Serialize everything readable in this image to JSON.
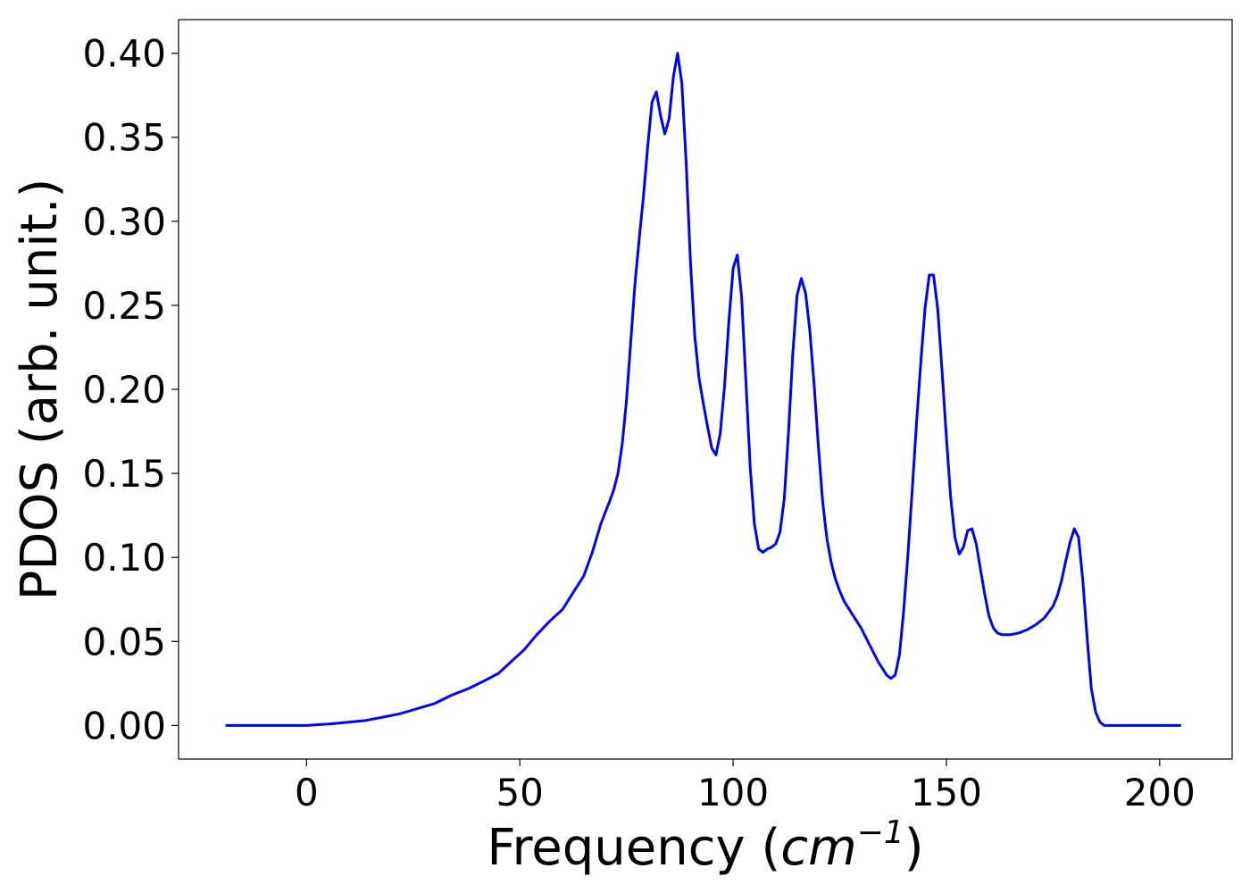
{
  "chart_data": {
    "type": "line",
    "title": "",
    "xlabel": "Frequency",
    "xlabel_unit_base": "cm",
    "xlabel_unit_exp": "−1",
    "ylabel": "PDOS (arb. unit.)",
    "xlim": [
      -30,
      217
    ],
    "ylim": [
      -0.02,
      0.42
    ],
    "xticks": [
      0,
      50,
      100,
      150,
      200
    ],
    "xtick_labels": [
      "0",
      "50",
      "100",
      "150",
      "200"
    ],
    "yticks": [
      0.0,
      0.05,
      0.1,
      0.15,
      0.2,
      0.25,
      0.3,
      0.35,
      0.4
    ],
    "ytick_labels": [
      "0.00",
      "0.05",
      "0.10",
      "0.15",
      "0.20",
      "0.25",
      "0.30",
      "0.35",
      "0.40"
    ],
    "grid": false,
    "legend": false,
    "series": [
      {
        "color": "#0000ff",
        "points": [
          [
            -19,
            0.0
          ],
          [
            0,
            0.0
          ],
          [
            6,
            0.001
          ],
          [
            10,
            0.002
          ],
          [
            14,
            0.003
          ],
          [
            18,
            0.005
          ],
          [
            22,
            0.007
          ],
          [
            26,
            0.01
          ],
          [
            30,
            0.013
          ],
          [
            34,
            0.018
          ],
          [
            38,
            0.022
          ],
          [
            42,
            0.027
          ],
          [
            45,
            0.031
          ],
          [
            48,
            0.038
          ],
          [
            51,
            0.045
          ],
          [
            54,
            0.054
          ],
          [
            57,
            0.062
          ],
          [
            60,
            0.069
          ],
          [
            63,
            0.081
          ],
          [
            65,
            0.089
          ],
          [
            67,
            0.103
          ],
          [
            69,
            0.12
          ],
          [
            71,
            0.133
          ],
          [
            72,
            0.14
          ],
          [
            73,
            0.15
          ],
          [
            74,
            0.167
          ],
          [
            75,
            0.193
          ],
          [
            76,
            0.228
          ],
          [
            77,
            0.263
          ],
          [
            78,
            0.29
          ],
          [
            79,
            0.315
          ],
          [
            80,
            0.345
          ],
          [
            81,
            0.371
          ],
          [
            82,
            0.377
          ],
          [
            83,
            0.363
          ],
          [
            84,
            0.352
          ],
          [
            85,
            0.361
          ],
          [
            86,
            0.386
          ],
          [
            87,
            0.4
          ],
          [
            88,
            0.382
          ],
          [
            89,
            0.335
          ],
          [
            90,
            0.276
          ],
          [
            91,
            0.232
          ],
          [
            92,
            0.207
          ],
          [
            93,
            0.192
          ],
          [
            94,
            0.178
          ],
          [
            95,
            0.165
          ],
          [
            96,
            0.161
          ],
          [
            97,
            0.174
          ],
          [
            98,
            0.202
          ],
          [
            99,
            0.24
          ],
          [
            100,
            0.272
          ],
          [
            101,
            0.28
          ],
          [
            102,
            0.255
          ],
          [
            103,
            0.205
          ],
          [
            104,
            0.154
          ],
          [
            105,
            0.12
          ],
          [
            106,
            0.105
          ],
          [
            107,
            0.103
          ],
          [
            108,
            0.105
          ],
          [
            109,
            0.106
          ],
          [
            110,
            0.108
          ],
          [
            111,
            0.115
          ],
          [
            112,
            0.135
          ],
          [
            113,
            0.175
          ],
          [
            114,
            0.221
          ],
          [
            115,
            0.256
          ],
          [
            116,
            0.266
          ],
          [
            117,
            0.257
          ],
          [
            118,
            0.235
          ],
          [
            119,
            0.203
          ],
          [
            120,
            0.166
          ],
          [
            121,
            0.133
          ],
          [
            122,
            0.111
          ],
          [
            123,
            0.097
          ],
          [
            124,
            0.087
          ],
          [
            125,
            0.08
          ],
          [
            126,
            0.074
          ],
          [
            128,
            0.066
          ],
          [
            130,
            0.058
          ],
          [
            132,
            0.048
          ],
          [
            134,
            0.038
          ],
          [
            136,
            0.03
          ],
          [
            137,
            0.028
          ],
          [
            138,
            0.03
          ],
          [
            139,
            0.042
          ],
          [
            140,
            0.068
          ],
          [
            141,
            0.102
          ],
          [
            142,
            0.14
          ],
          [
            143,
            0.18
          ],
          [
            144,
            0.216
          ],
          [
            145,
            0.248
          ],
          [
            146,
            0.268
          ],
          [
            147,
            0.268
          ],
          [
            148,
            0.247
          ],
          [
            149,
            0.211
          ],
          [
            150,
            0.172
          ],
          [
            151,
            0.136
          ],
          [
            152,
            0.112
          ],
          [
            153,
            0.102
          ],
          [
            154,
            0.106
          ],
          [
            155,
            0.116
          ],
          [
            156,
            0.117
          ],
          [
            157,
            0.108
          ],
          [
            158,
            0.093
          ],
          [
            159,
            0.078
          ],
          [
            160,
            0.065
          ],
          [
            161,
            0.058
          ],
          [
            162,
            0.055
          ],
          [
            163,
            0.054
          ],
          [
            165,
            0.054
          ],
          [
            167,
            0.055
          ],
          [
            169,
            0.057
          ],
          [
            171,
            0.06
          ],
          [
            173,
            0.064
          ],
          [
            175,
            0.071
          ],
          [
            176,
            0.077
          ],
          [
            177,
            0.086
          ],
          [
            178,
            0.098
          ],
          [
            179,
            0.109
          ],
          [
            180,
            0.117
          ],
          [
            181,
            0.112
          ],
          [
            182,
            0.086
          ],
          [
            183,
            0.052
          ],
          [
            184,
            0.022
          ],
          [
            185,
            0.008
          ],
          [
            186,
            0.002
          ],
          [
            187,
            0.0
          ],
          [
            190,
            0.0
          ],
          [
            205,
            0.0
          ]
        ]
      }
    ]
  }
}
